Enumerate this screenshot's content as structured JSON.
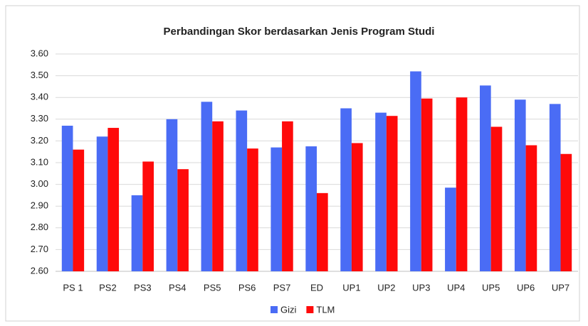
{
  "chart_data": {
    "type": "bar",
    "title": "Perbandingan Skor berdasarkan Jenis Program Studi",
    "categories": [
      "PS 1",
      "PS2",
      "PS3",
      "PS4",
      "PS5",
      "PS6",
      "PS7",
      "ED",
      "UP1",
      "UP2",
      "UP3",
      "UP4",
      "UP5",
      "UP6",
      "UP7"
    ],
    "series": [
      {
        "name": "Gizi",
        "color": "#4a6cf5",
        "values": [
          3.27,
          3.22,
          2.95,
          3.3,
          3.38,
          3.34,
          3.17,
          3.175,
          3.35,
          3.33,
          3.52,
          2.985,
          3.455,
          3.39,
          3.37
        ]
      },
      {
        "name": "TLM",
        "color": "#ff0a0a",
        "values": [
          3.16,
          3.26,
          3.105,
          3.07,
          3.29,
          3.165,
          3.29,
          2.96,
          3.19,
          3.315,
          3.395,
          3.4,
          3.265,
          3.18,
          3.14
        ]
      }
    ],
    "ylim": [
      2.6,
      3.6
    ],
    "yticks": [
      {
        "value": 2.6,
        "label": "2.60"
      },
      {
        "value": 2.7,
        "label": "2.70"
      },
      {
        "value": 2.8,
        "label": "2.80"
      },
      {
        "value": 2.9,
        "label": "2.90"
      },
      {
        "value": 3.0,
        "label": "3.00"
      },
      {
        "value": 3.1,
        "label": "3.10"
      },
      {
        "value": 3.2,
        "label": "3.20"
      },
      {
        "value": 3.3,
        "label": "3.30"
      },
      {
        "value": 3.4,
        "label": "3.40"
      },
      {
        "value": 3.5,
        "label": "3.50"
      },
      {
        "value": 3.6,
        "label": "3.60"
      }
    ],
    "grid": true,
    "legend": "bottom"
  }
}
